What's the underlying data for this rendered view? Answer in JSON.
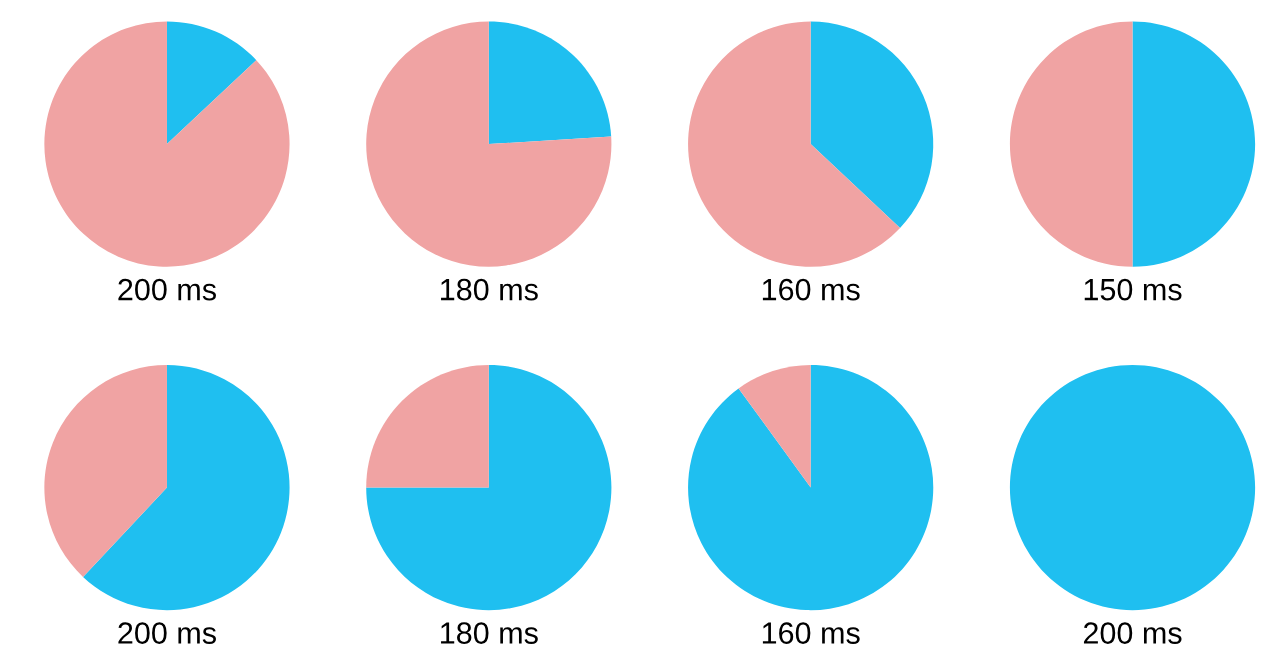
{
  "chart_data": [
    {
      "type": "pie",
      "xlabel": "200 ms",
      "categories": [
        null,
        null
      ],
      "values": [
        13,
        87
      ],
      "colors": [
        "#1fbff0",
        "#f0a3a3"
      ]
    },
    {
      "type": "pie",
      "xlabel": "180 ms",
      "categories": [
        null,
        null
      ],
      "values": [
        24,
        76
      ],
      "colors": [
        "#1fbff0",
        "#f0a3a3"
      ]
    },
    {
      "type": "pie",
      "xlabel": "160 ms",
      "categories": [
        null,
        null
      ],
      "values": [
        37,
        63
      ],
      "colors": [
        "#1fbff0",
        "#f0a3a3"
      ]
    },
    {
      "type": "pie",
      "xlabel": "150 ms",
      "categories": [
        null,
        null
      ],
      "values": [
        50,
        50
      ],
      "colors": [
        "#1fbff0",
        "#f0a3a3"
      ]
    },
    {
      "type": "pie",
      "xlabel": "200 ms",
      "categories": [
        null,
        null
      ],
      "values": [
        62,
        38
      ],
      "colors": [
        "#1fbff0",
        "#f0a3a3"
      ]
    },
    {
      "type": "pie",
      "xlabel": "180 ms",
      "categories": [
        null,
        null
      ],
      "values": [
        75,
        25
      ],
      "colors": [
        "#1fbff0",
        "#f0a3a3"
      ]
    },
    {
      "type": "pie",
      "xlabel": "160 ms",
      "categories": [
        null,
        null
      ],
      "values": [
        90,
        10
      ],
      "colors": [
        "#1fbff0",
        "#f0a3a3"
      ]
    },
    {
      "type": "pie",
      "xlabel": "200 ms",
      "categories": [
        null
      ],
      "values": [
        100
      ],
      "colors": [
        "#1fbff0"
      ]
    }
  ]
}
